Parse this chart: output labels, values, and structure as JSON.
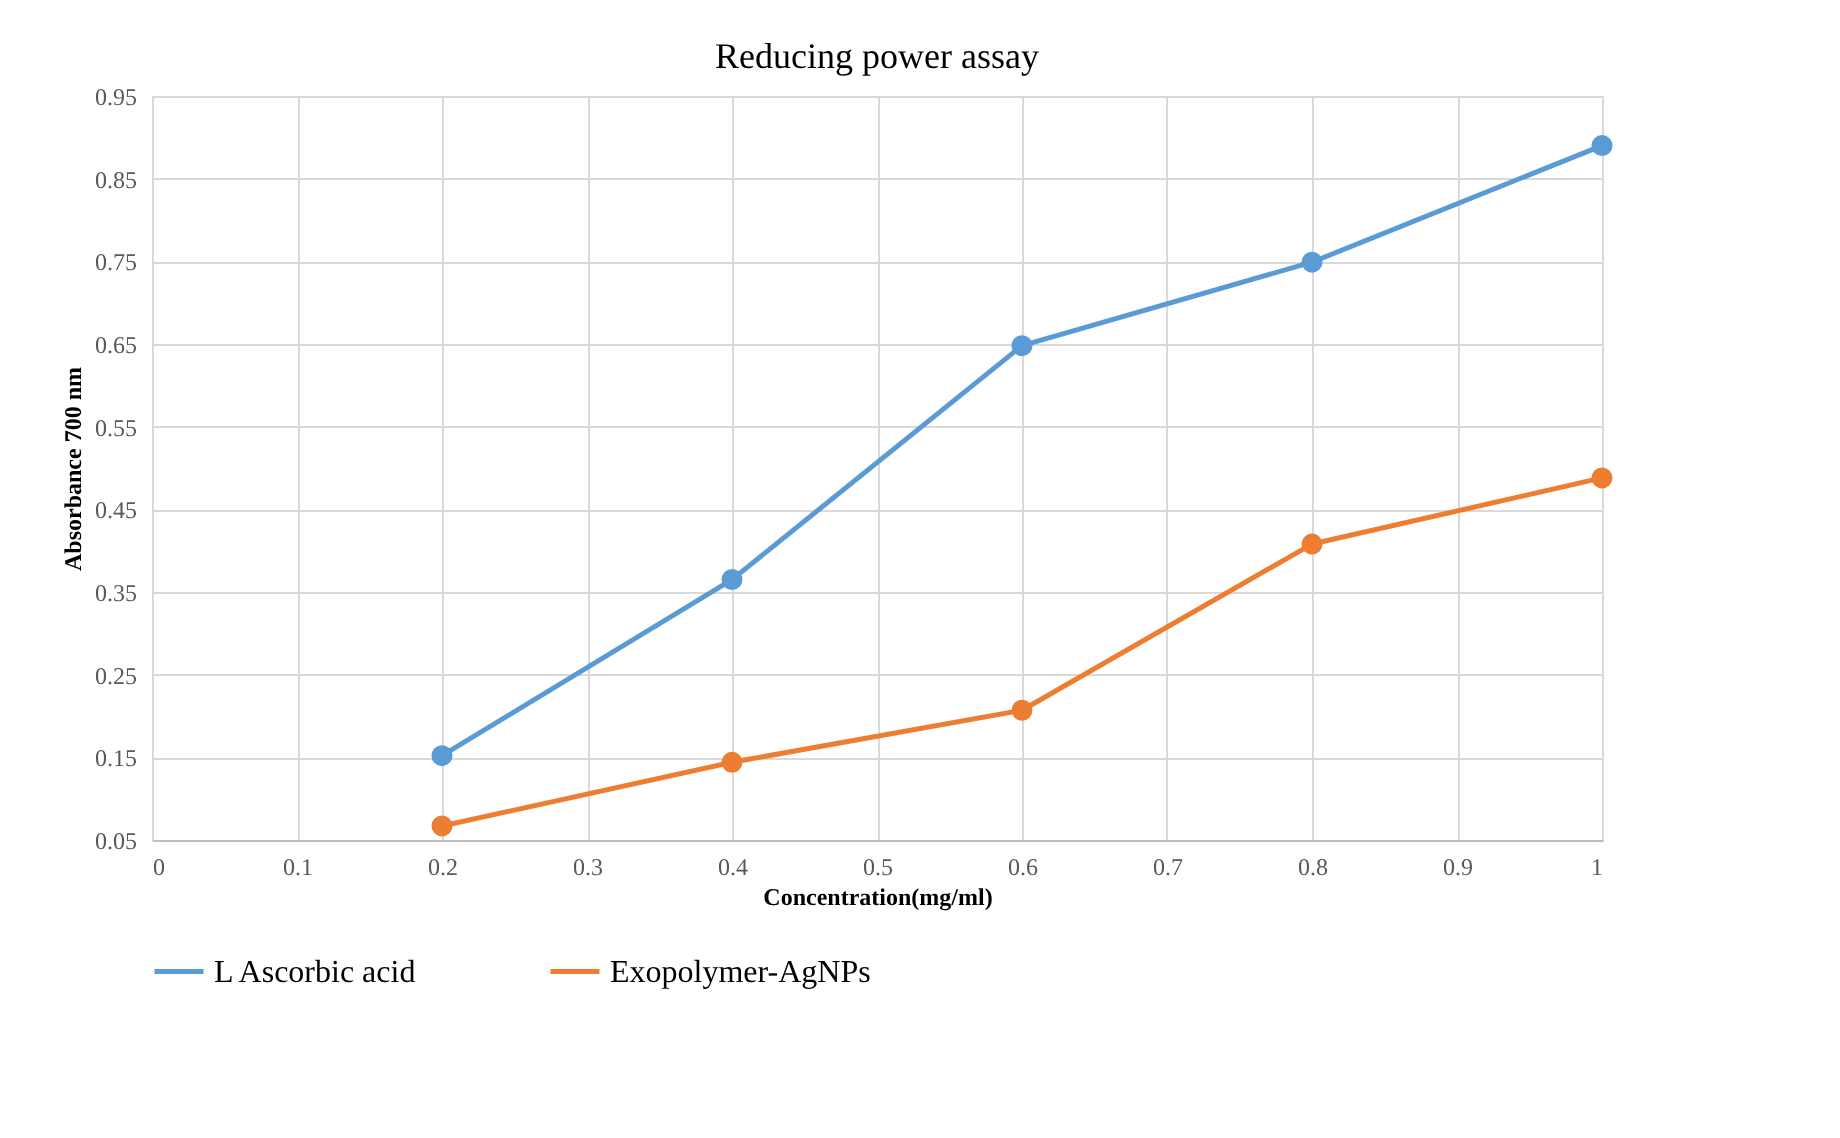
{
  "chart_data": {
    "type": "line",
    "title": "Reducing power assay",
    "xlabel": "Concentration(mg/ml)",
    "ylabel": "Absorbance 700 nm",
    "x": [
      0.2,
      0.4,
      0.6,
      0.8,
      1
    ],
    "series": [
      {
        "name": "L Ascorbic acid",
        "color": "#5b9bd5",
        "values": [
          0.152,
          0.365,
          0.648,
          0.749,
          0.89
        ]
      },
      {
        "name": "Exopolymer-AgNPs",
        "color": "#ed7d31",
        "values": [
          0.067,
          0.144,
          0.207,
          0.408,
          0.488
        ]
      }
    ],
    "xlim": [
      0,
      1
    ],
    "xticks": [
      0,
      0.1,
      0.2,
      0.3,
      0.4,
      0.5,
      0.6,
      0.7,
      0.8,
      0.9,
      1
    ],
    "ylim": [
      0.05,
      0.95
    ],
    "yticks": [
      0.05,
      0.15,
      0.25,
      0.35,
      0.45,
      0.55,
      0.65,
      0.75,
      0.85,
      0.95
    ],
    "grid": true,
    "legend": "bottom",
    "marker": "circle",
    "line_style": "solid"
  }
}
